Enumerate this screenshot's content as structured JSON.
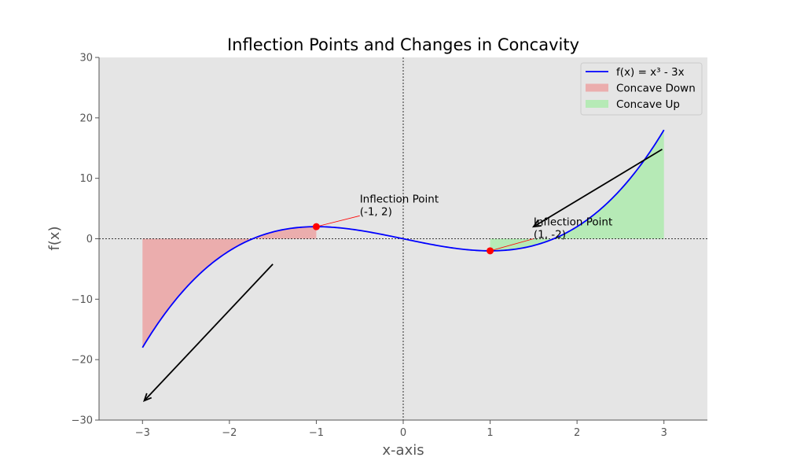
{
  "chart_data": {
    "type": "line",
    "title": "Inflection Points and Changes in Concavity",
    "xlabel": "x-axis",
    "ylabel": "f(x)",
    "xlim": [
      -3.5,
      3.5
    ],
    "ylim": [
      -30,
      30
    ],
    "xticks": [
      -3,
      -2,
      -1,
      0,
      1,
      2,
      3
    ],
    "yticks": [
      -30,
      -20,
      -10,
      0,
      10,
      20,
      30
    ],
    "xtick_labels": [
      "−3",
      "−2",
      "−1",
      "0",
      "1",
      "2",
      "3"
    ],
    "ytick_labels": [
      "−30",
      "−20",
      "−10",
      "0",
      "10",
      "20",
      "30"
    ],
    "grid": false,
    "legend_position": "top-right",
    "series": [
      {
        "name": "f(x) = x³ - 3x",
        "kind": "line",
        "color": "#0000ff",
        "x": [
          -3,
          -2.75,
          -2.5,
          -2.25,
          -2,
          -1.75,
          -1.5,
          -1.25,
          -1,
          -0.75,
          -0.5,
          -0.25,
          0,
          0.25,
          0.5,
          0.75,
          1,
          1.25,
          1.5,
          1.75,
          2,
          2.25,
          2.5,
          2.75,
          3
        ],
        "y": [
          -18,
          -12.55,
          -8.13,
          -4.64,
          -2,
          -0.11,
          1.13,
          1.8,
          2,
          1.83,
          1.38,
          0.73,
          0,
          -0.73,
          -1.38,
          -1.83,
          -2,
          -1.8,
          -1.13,
          0.11,
          2,
          4.64,
          8.13,
          12.55,
          18
        ]
      },
      {
        "name": "Concave Down",
        "kind": "fill",
        "color": "#f08080",
        "x_range": [
          -3,
          -1
        ]
      },
      {
        "name": "Concave Up",
        "kind": "fill",
        "color": "#90ee90",
        "x_range": [
          1,
          3
        ]
      }
    ],
    "inflection_points": [
      {
        "x": -1,
        "y": 2,
        "color": "#ff0000"
      },
      {
        "x": 1,
        "y": -2,
        "color": "#ff0000"
      }
    ],
    "annotations": [
      {
        "line1": "Inflection Point",
        "line2": "(-1, 2)",
        "point": [
          -1,
          2
        ],
        "text_at": [
          -0.5,
          3.8
        ]
      },
      {
        "line1": "Inflection Point",
        "line2": "(1, -2)",
        "point": [
          1,
          -2
        ],
        "text_at": [
          1.5,
          0
        ]
      }
    ],
    "arrows": [
      {
        "from": [
          -1.5,
          -4.2
        ],
        "to": [
          -2.98,
          -26.8
        ]
      },
      {
        "from": [
          2.98,
          14.8
        ],
        "to": [
          1.5,
          2
        ]
      }
    ],
    "reference_lines": {
      "x": 0,
      "y": 0,
      "style": "dotted"
    },
    "colors": {
      "axes_background": "#e5e5e5",
      "curve": "#0000ff",
      "concave_down": "#f08080",
      "concave_up": "#90ee90",
      "points": "#ff0000",
      "annotation_line": "#ff0000",
      "arrow": "#000000"
    }
  }
}
